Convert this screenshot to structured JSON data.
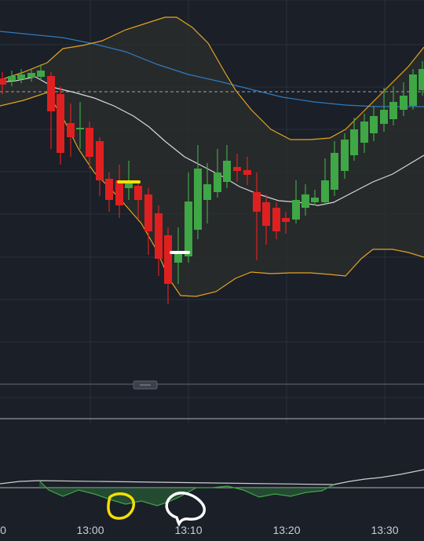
{
  "chart_data": {
    "type": "candlestick",
    "x_tick_labels": [
      "0",
      "13:00",
      "13:10",
      "13:20",
      "13:30"
    ],
    "colors": {
      "background": "#1a1f28",
      "grid": "#2a313b",
      "bullish": "#3fa745",
      "bearish": "#e02020",
      "bollinger_band": "#e3a41f",
      "bollinger_middle": "#d8d8d8",
      "moving_average": "#2f7bbf",
      "oscillator_fill": "#2f6e3a",
      "oscillator_line": "#cfcfcf",
      "separator": "#4a5360",
      "annotation_yellow": "#f5e000",
      "annotation_white": "#ffffff"
    },
    "scroll_handle_icon": "drag-handle-icon"
  }
}
